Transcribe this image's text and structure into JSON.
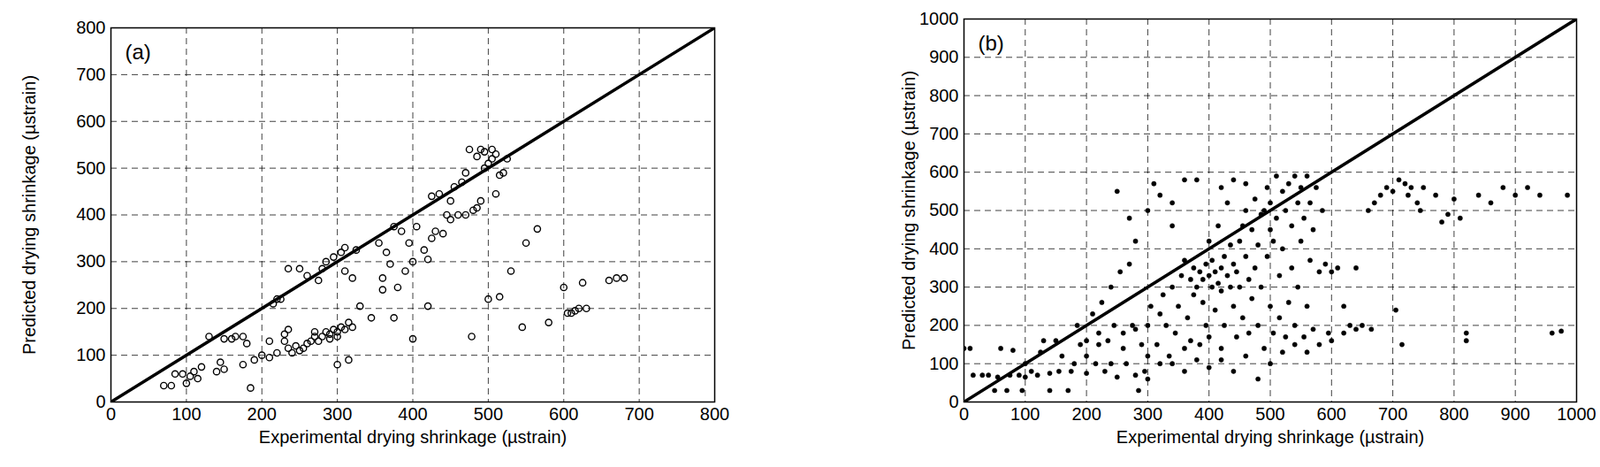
{
  "chart_data": [
    {
      "type": "scatter",
      "x_label": "Experimental drying shrinkage (µstrain)",
      "y_label": "Predicted drying shrinkage (µstrain)",
      "annotations": [
        {
          "text": "(a)"
        }
      ],
      "xlim": [
        0,
        800
      ],
      "ylim": [
        0,
        800
      ],
      "xticks": [
        0,
        100,
        200,
        300,
        400,
        500,
        600,
        700,
        800
      ],
      "yticks": [
        0,
        100,
        200,
        300,
        400,
        500,
        600,
        700,
        800
      ],
      "grid": true,
      "series": [
        {
          "type": "scatter",
          "marker": "circle-open",
          "color": "#000000",
          "x": [
            70,
            80,
            85,
            95,
            100,
            105,
            110,
            115,
            120,
            130,
            140,
            145,
            150,
            150,
            160,
            165,
            175,
            175,
            180,
            185,
            190,
            200,
            210,
            210,
            215,
            220,
            220,
            225,
            230,
            230,
            235,
            235,
            235,
            240,
            245,
            250,
            250,
            255,
            260,
            260,
            265,
            270,
            270,
            275,
            275,
            280,
            280,
            285,
            285,
            290,
            290,
            295,
            295,
            300,
            300,
            300,
            305,
            305,
            310,
            310,
            310,
            315,
            315,
            320,
            320,
            325,
            330,
            345,
            355,
            360,
            360,
            365,
            370,
            375,
            375,
            380,
            385,
            390,
            395,
            400,
            400,
            405,
            415,
            420,
            420,
            425,
            425,
            430,
            435,
            440,
            445,
            450,
            450,
            455,
            460,
            465,
            470,
            470,
            475,
            478,
            480,
            485,
            485,
            490,
            490,
            495,
            495,
            500,
            500,
            505,
            505,
            510,
            510,
            515,
            515,
            520,
            525,
            530,
            545,
            550,
            565,
            580,
            600,
            605,
            610,
            615,
            620,
            625,
            630,
            660,
            670,
            680
          ],
          "values": [
            35,
            35,
            60,
            60,
            40,
            55,
            65,
            50,
            75,
            140,
            65,
            85,
            70,
            135,
            135,
            140,
            80,
            140,
            125,
            30,
            90,
            100,
            95,
            130,
            210,
            105,
            220,
            220,
            130,
            145,
            115,
            155,
            285,
            105,
            120,
            110,
            285,
            115,
            125,
            270,
            130,
            140,
            150,
            130,
            260,
            140,
            285,
            300,
            150,
            135,
            145,
            155,
            310,
            140,
            80,
            150,
            160,
            320,
            330,
            155,
            280,
            170,
            90,
            265,
            160,
            325,
            205,
            180,
            340,
            265,
            240,
            320,
            295,
            180,
            375,
            245,
            365,
            280,
            340,
            135,
            300,
            375,
            325,
            305,
            205,
            350,
            440,
            365,
            445,
            360,
            400,
            430,
            390,
            460,
            400,
            470,
            490,
            400,
            540,
            140,
            410,
            415,
            525,
            430,
            540,
            500,
            535,
            220,
            510,
            520,
            540,
            530,
            445,
            225,
            485,
            490,
            520,
            280,
            160,
            340,
            370,
            170,
            245,
            190,
            190,
            195,
            200,
            255,
            200,
            260,
            265,
            265
          ]
        },
        {
          "type": "line",
          "color": "#000000",
          "x": [
            0,
            800
          ],
          "values": [
            0,
            800
          ]
        }
      ]
    },
    {
      "type": "scatter",
      "x_label": "Experimental drying shrinkage (µstrain)",
      "y_label": "Predicted drying shrinkage (µstrain)",
      "annotations": [
        {
          "text": "(b)"
        }
      ],
      "xlim": [
        0,
        1000
      ],
      "ylim": [
        0,
        1000
      ],
      "xticks": [
        0,
        100,
        200,
        300,
        400,
        500,
        600,
        700,
        800,
        900,
        1000
      ],
      "yticks": [
        0,
        100,
        200,
        300,
        400,
        500,
        600,
        700,
        800,
        900,
        1000
      ],
      "grid": true,
      "series": [
        {
          "type": "scatter",
          "marker": "circle",
          "color": "#000000",
          "x": [
            0,
            10,
            15,
            30,
            40,
            50,
            55,
            60,
            70,
            75,
            80,
            90,
            95,
            100,
            100,
            110,
            120,
            125,
            130,
            140,
            140,
            150,
            155,
            160,
            170,
            175,
            180,
            185,
            190,
            200,
            200,
            210,
            215,
            220,
            225,
            230,
            235,
            240,
            245,
            250,
            255,
            260,
            265,
            270,
            275,
            280,
            285,
            290,
            295,
            300,
            300,
            305,
            310,
            315,
            320,
            320,
            325,
            330,
            335,
            340,
            340,
            345,
            350,
            355,
            360,
            360,
            365,
            370,
            370,
            375,
            375,
            380,
            380,
            385,
            385,
            390,
            390,
            395,
            395,
            400,
            400,
            400,
            405,
            405,
            410,
            410,
            415,
            415,
            420,
            420,
            420,
            425,
            425,
            430,
            430,
            435,
            435,
            440,
            440,
            445,
            445,
            450,
            450,
            455,
            455,
            460,
            460,
            465,
            465,
            470,
            470,
            475,
            475,
            480,
            480,
            485,
            485,
            490,
            490,
            495,
            495,
            500,
            500,
            500,
            505,
            505,
            510,
            510,
            515,
            515,
            520,
            520,
            525,
            525,
            530,
            530,
            535,
            535,
            540,
            540,
            545,
            545,
            550,
            550,
            555,
            555,
            560,
            560,
            565,
            565,
            570,
            570,
            575,
            580,
            585,
            590,
            595,
            600,
            610,
            620,
            630,
            640,
            650,
            660,
            665,
            670,
            680,
            690,
            700,
            705,
            710,
            715,
            720,
            725,
            730,
            740,
            745,
            750,
            770,
            780,
            790,
            800,
            810,
            820,
            820,
            840,
            860,
            880,
            900,
            920,
            940,
            960,
            975,
            985,
            200,
            220,
            240,
            260,
            280,
            300,
            320,
            340,
            360,
            380,
            400,
            420,
            440,
            460,
            480,
            500,
            520,
            540,
            560,
            580,
            600,
            620,
            640,
            300,
            340,
            360,
            280,
            270,
            250,
            420,
            440,
            460
          ],
          "values": [
            140,
            140,
            70,
            70,
            70,
            30,
            65,
            140,
            30,
            70,
            135,
            70,
            30,
            65,
            100,
            80,
            70,
            130,
            160,
            75,
            30,
            160,
            80,
            120,
            30,
            80,
            100,
            200,
            150,
            75,
            160,
            230,
            100,
            150,
            260,
            80,
            160,
            300,
            200,
            65,
            340,
            180,
            100,
            360,
            200,
            70,
            30,
            150,
            80,
            60,
            200,
            250,
            570,
            150,
            100,
            540,
            280,
            200,
            120,
            300,
            460,
            180,
            250,
            330,
            140,
            370,
            220,
            320,
            160,
            350,
            280,
            300,
            580,
            340,
            150,
            320,
            260,
            360,
            200,
            330,
            420,
            170,
            300,
            370,
            340,
            240,
            310,
            460,
            350,
            290,
            140,
            380,
            200,
            330,
            520,
            300,
            410,
            360,
            250,
            340,
            170,
            420,
            300,
            460,
            220,
            380,
            500,
            320,
            180,
            450,
            270,
            530,
            350,
            410,
            200,
            490,
            300,
            500,
            140,
            560,
            380,
            520,
            250,
            450,
            420,
            180,
            590,
            480,
            330,
            220,
            550,
            400,
            500,
            170,
            570,
            260,
            460,
            350,
            590,
            200,
            520,
            300,
            560,
            420,
            480,
            170,
            590,
            250,
            520,
            370,
            450,
            190,
            560,
            340,
            500,
            360,
            180,
            340,
            350,
            250,
            200,
            350,
            200,
            500,
            190,
            520,
            540,
            560,
            550,
            240,
            580,
            150,
            570,
            540,
            560,
            520,
            500,
            560,
            540,
            470,
            490,
            530,
            480,
            180,
            160,
            540,
            520,
            560,
            540,
            560,
            540,
            180,
            185,
            540,
            120,
            180,
            100,
            140,
            190,
            120,
            230,
            100,
            80,
            110,
            90,
            110,
            80,
            120,
            60,
            100,
            130,
            150,
            130,
            150,
            160,
            180,
            190,
            500,
            520,
            580,
            420,
            480,
            550,
            560,
            580,
            570
          ]
        },
        {
          "type": "line",
          "color": "#000000",
          "x": [
            0,
            1000
          ],
          "values": [
            0,
            1000
          ]
        }
      ]
    }
  ]
}
